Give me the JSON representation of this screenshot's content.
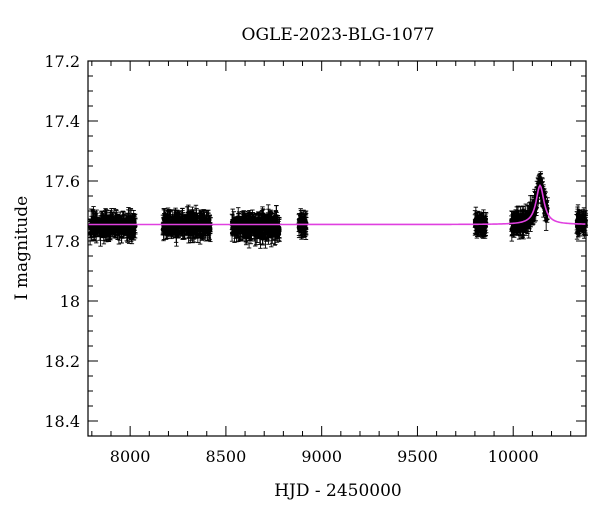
{
  "chart_data": {
    "type": "scatter",
    "title": "OGLE-2023-BLG-1077",
    "xlabel": "HJD - 2450000",
    "ylabel": "I magnitude",
    "xlim": [
      7780,
      10380
    ],
    "ylim": [
      17.2,
      18.45
    ],
    "y_inverted": true,
    "xticks": [
      8000,
      8500,
      9000,
      9500,
      10000
    ],
    "xtick_labels": [
      "8000",
      "8500",
      "9000",
      "9500",
      "10000"
    ],
    "yticks": [
      17.2,
      17.4,
      17.6,
      17.8,
      18.0,
      18.2,
      18.4
    ],
    "ytick_labels": [
      "17.2",
      "17.4",
      "17.6",
      "17.8",
      "18",
      "18.2",
      "18.4"
    ],
    "baseline_mag": 17.745,
    "model_color": "#e040e0",
    "point_color": "#000000",
    "seasons": [
      {
        "x_start": 7790,
        "x_end": 8030,
        "mag": 17.75,
        "scatter": 0.025
      },
      {
        "x_start": 8170,
        "x_end": 8420,
        "mag": 17.745,
        "scatter": 0.025
      },
      {
        "x_start": 8530,
        "x_end": 8780,
        "mag": 17.75,
        "scatter": 0.03
      },
      {
        "x_start": 8880,
        "x_end": 8920,
        "mag": 17.745,
        "scatter": 0.02
      },
      {
        "x_start": 9800,
        "x_end": 9860,
        "mag": 17.745,
        "scatter": 0.02
      },
      {
        "x_start": 9990,
        "x_end": 10180,
        "mag": 17.745,
        "scatter": 0.025
      },
      {
        "x_start": 10330,
        "x_end": 10380,
        "mag": 17.74,
        "scatter": 0.015
      }
    ],
    "peak": {
      "t0": 10140,
      "peak_mag": 17.615,
      "width_days": 25
    }
  }
}
